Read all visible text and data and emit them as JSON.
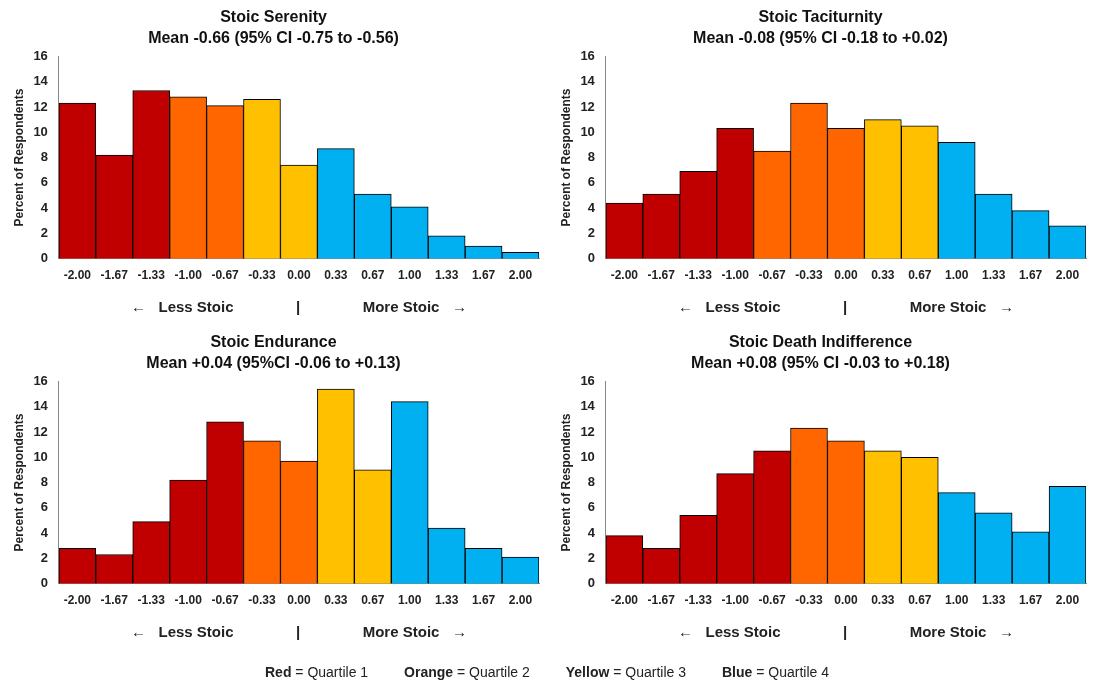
{
  "chart_data": [
    {
      "type": "bar",
      "title": "Stoic Serenity",
      "subtitle": "Mean -0.66 (95% CI -0.75 to -0.56)",
      "xlabel": "←   Less Stoic               |               More Stoic   →",
      "ylabel": "Percent of Respondents",
      "categories": [
        "-2.00",
        "-1.67",
        "-1.33",
        "-1.00",
        "-0.67",
        "-0.33",
        "0.00",
        "0.33",
        "0.67",
        "1.00",
        "1.33",
        "1.67",
        "2.00"
      ],
      "values": [
        12.3,
        8.2,
        13.3,
        12.8,
        12.1,
        12.6,
        7.4,
        8.7,
        5.1,
        4.1,
        1.8,
        1.0,
        0.5
      ],
      "colors": [
        "#c00000",
        "#c00000",
        "#c00000",
        "#ff6600",
        "#ff6600",
        "#ffc000",
        "#ffc000",
        "#00b0f0",
        "#00b0f0",
        "#00b0f0",
        "#00b0f0",
        "#00b0f0",
        "#00b0f0"
      ],
      "ylim": [
        0,
        16
      ],
      "yticks": [
        0,
        2,
        4,
        6,
        8,
        10,
        12,
        14,
        16
      ],
      "grid": false,
      "legend": false
    },
    {
      "type": "bar",
      "title": "Stoic Taciturnity",
      "subtitle": "Mean -0.08 (95% CI -0.18 to +0.02)",
      "xlabel": "←   Less Stoic               |               More Stoic   →",
      "ylabel": "Percent of Respondents",
      "categories": [
        "-2.00",
        "-1.67",
        "-1.33",
        "-1.00",
        "-0.67",
        "-0.33",
        "0.00",
        "0.33",
        "0.67",
        "1.00",
        "1.33",
        "1.67",
        "2.00"
      ],
      "values": [
        4.4,
        5.1,
        6.9,
        10.3,
        8.5,
        12.3,
        10.3,
        11.0,
        10.5,
        9.2,
        5.1,
        3.8,
        2.6
      ],
      "colors": [
        "#c00000",
        "#c00000",
        "#c00000",
        "#c00000",
        "#ff6600",
        "#ff6600",
        "#ff6600",
        "#ffc000",
        "#ffc000",
        "#00b0f0",
        "#00b0f0",
        "#00b0f0",
        "#00b0f0"
      ],
      "ylim": [
        0,
        16
      ],
      "yticks": [
        0,
        2,
        4,
        6,
        8,
        10,
        12,
        14,
        16
      ],
      "grid": false,
      "legend": false
    },
    {
      "type": "bar",
      "title": "Stoic Endurance",
      "subtitle": "Mean +0.04 (95%CI -0.06 to +0.13)",
      "xlabel": "←   Less Stoic               |               More Stoic   →",
      "ylabel": "Percent of Respondents",
      "categories": [
        "-2.00",
        "-1.67",
        "-1.33",
        "-1.00",
        "-0.67",
        "-0.33",
        "0.00",
        "0.33",
        "0.67",
        "1.00",
        "1.33",
        "1.67",
        "2.00"
      ],
      "values": [
        2.8,
        2.3,
        4.9,
        8.2,
        12.8,
        11.3,
        9.7,
        15.4,
        9.0,
        14.4,
        4.4,
        2.8,
        2.1
      ],
      "colors": [
        "#c00000",
        "#c00000",
        "#c00000",
        "#c00000",
        "#c00000",
        "#ff6600",
        "#ff6600",
        "#ffc000",
        "#ffc000",
        "#00b0f0",
        "#00b0f0",
        "#00b0f0",
        "#00b0f0"
      ],
      "ylim": [
        0,
        16
      ],
      "yticks": [
        0,
        2,
        4,
        6,
        8,
        10,
        12,
        14,
        16
      ],
      "grid": false,
      "legend": false
    },
    {
      "type": "bar",
      "title": "Stoic Death Indifference",
      "subtitle": "Mean +0.08 (95% CI -0.03 to +0.18)",
      "xlabel": "←   Less Stoic               |               More Stoic   →",
      "ylabel": "Percent of Respondents",
      "categories": [
        "-2.00",
        "-1.67",
        "-1.33",
        "-1.00",
        "-0.67",
        "-0.33",
        "0.00",
        "0.33",
        "0.67",
        "1.00",
        "1.33",
        "1.67",
        "2.00"
      ],
      "values": [
        3.8,
        2.8,
        5.4,
        8.7,
        10.5,
        12.3,
        11.3,
        10.5,
        10.0,
        7.2,
        5.6,
        4.1,
        7.7
      ],
      "colors": [
        "#c00000",
        "#c00000",
        "#c00000",
        "#c00000",
        "#c00000",
        "#ff6600",
        "#ff6600",
        "#ffc000",
        "#ffc000",
        "#00b0f0",
        "#00b0f0",
        "#00b0f0",
        "#00b0f0"
      ],
      "ylim": [
        0,
        16
      ],
      "yticks": [
        0,
        2,
        4,
        6,
        8,
        10,
        12,
        14,
        16
      ],
      "grid": false,
      "legend": false,
      "annotations": [
        "Red = Quartile 1",
        "Orange = Quartile 2",
        "Yellow = Quartile 3",
        "Blue = Quartile 4"
      ]
    }
  ]
}
